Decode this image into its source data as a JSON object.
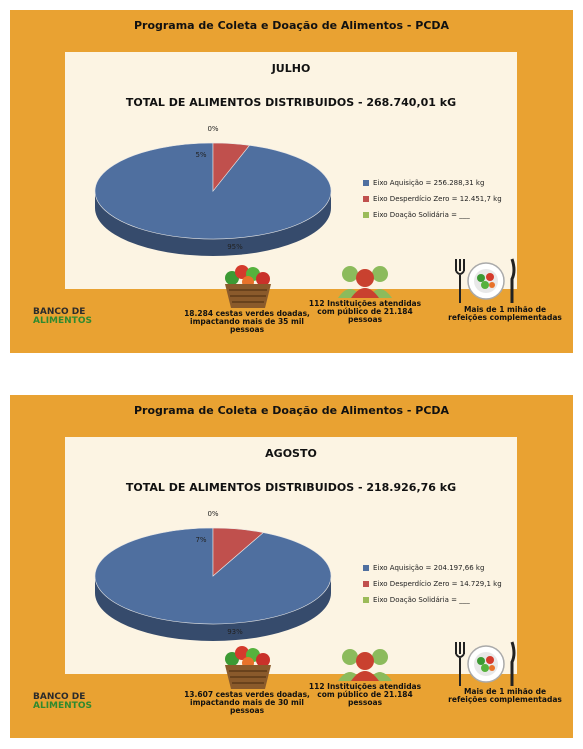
{
  "panels": [
    {
      "program_title": "Programa de Coleta e Doação de Alimentos - PCDA",
      "month": "JULHO",
      "total": "TOTAL DE ALIMENTOS DISTRIBUIDOS -  268.740,01 kG",
      "stats": {
        "baskets": "18.284 cestas verdes doadas, impactando mais de 35 mil pessoas",
        "institutions": "112 Instituições atendidas com público de 21.184 pessoas",
        "meals": "Mais de 1 mihão de refeições complementadas"
      },
      "logo": {
        "line1": "BANCO DE",
        "line2": "ALIMENTOS"
      }
    },
    {
      "program_title": "Programa de Coleta e Doação de Alimentos - PCDA",
      "month": "AGOSTO",
      "total": "TOTAL DE ALIMENTOS DISTRIBUIDOS -  218.926,76 kG",
      "stats": {
        "baskets": "13.607 cestas verdes doadas, impactando mais de 30  mil pessoas",
        "institutions": "112 Instituições atendidas com público de 21.184 pessoas",
        "meals": "Mais de 1 mihão de refeições complementadas"
      },
      "logo": {
        "line1": "BANCO DE",
        "line2": "ALIMENTOS"
      }
    }
  ],
  "chart_data": [
    {
      "type": "pie",
      "title": "TOTAL DE ALIMENTOS DISTRIBUIDOS -  268.740,01 kG",
      "categories": [
        "Eixo Aquisição = 256.288,31 kg",
        "Eixo Desperdício Zero = 12.451,7 kg",
        "Eixo Doação Solidária = ___"
      ],
      "values": [
        95,
        5,
        0
      ],
      "labels": [
        "95%",
        "5%",
        "0%"
      ],
      "colors": [
        "#4f6f9f",
        "#c0504d",
        "#9bbb59"
      ],
      "legend": "right"
    },
    {
      "type": "pie",
      "title": "TOTAL DE ALIMENTOS DISTRIBUIDOS -  218.926,76 kG",
      "categories": [
        "Eixo Aquisição = 204.197,66 kg",
        "Eixo Desperdício Zero = 14.729,1 kg",
        "Eixo Doação Solidária = ___"
      ],
      "values": [
        93,
        7,
        0
      ],
      "labels": [
        "93%",
        "7%",
        "0%"
      ],
      "colors": [
        "#4f6f9f",
        "#c0504d",
        "#9bbb59"
      ],
      "legend": "right"
    }
  ]
}
